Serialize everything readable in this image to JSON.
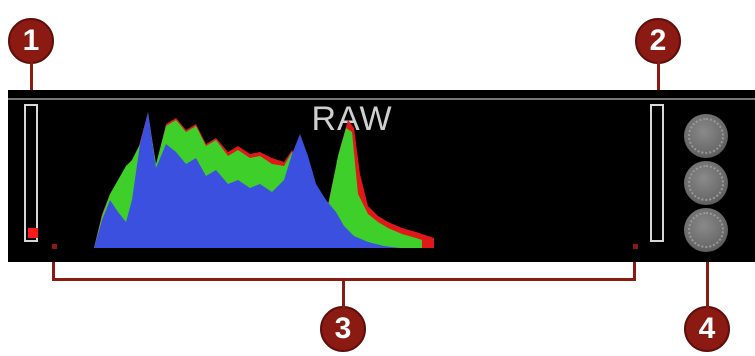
{
  "panel": {
    "label": "RAW",
    "clipping_warning_color": "#ff1a1a"
  },
  "callouts": [
    "1",
    "2",
    "3",
    "4"
  ],
  "controls": {
    "dial_icons": [
      "dial-icon",
      "dial-icon",
      "dial-icon"
    ]
  },
  "colors": {
    "callout": "#8b1a12",
    "panel_background": "#000000",
    "histogram_blue": "#3c50e0",
    "histogram_green": "#3ecf2a",
    "histogram_red": "#e01818"
  }
}
